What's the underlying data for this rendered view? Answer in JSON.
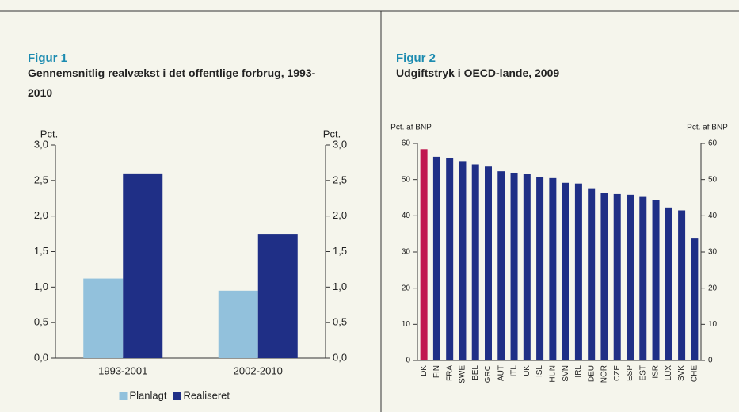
{
  "chart_data": [
    {
      "type": "bar",
      "label": "Figur 1",
      "title": "Gennemsnitlig realvækst i det offentlige forbrug, 1993-2010",
      "ylabel": "Pct.",
      "y2label": "Pct.",
      "categories": [
        "1993-2001",
        "2002-2010"
      ],
      "series": [
        {
          "name": "Planlagt",
          "color": "#92c1dc",
          "values": [
            1.12,
            0.95
          ]
        },
        {
          "name": "Realiseret",
          "color": "#1f2f86",
          "values": [
            2.6,
            1.75
          ]
        }
      ],
      "ylim": [
        0,
        3
      ],
      "yticks": [
        {
          "value": 0,
          "label": "0,0"
        },
        {
          "value": 0.5,
          "label": "0,5"
        },
        {
          "value": 1,
          "label": "1,0"
        },
        {
          "value": 1.5,
          "label": "1,5"
        },
        {
          "value": 2,
          "label": "2,0"
        },
        {
          "value": 2.5,
          "label": "2,5"
        },
        {
          "value": 3,
          "label": "3,0"
        }
      ],
      "y2lim": [
        0,
        3
      ],
      "y2ticks": [
        {
          "value": 0,
          "label": "0,0"
        },
        {
          "value": 0.5,
          "label": "0,5"
        },
        {
          "value": 1,
          "label": "1,0"
        },
        {
          "value": 1.5,
          "label": "1,5"
        },
        {
          "value": 2,
          "label": "2,0"
        },
        {
          "value": 2.5,
          "label": "2,5"
        },
        {
          "value": 3,
          "label": "3,0"
        }
      ],
      "legend": "bottom"
    },
    {
      "type": "bar",
      "label": "Figur 2",
      "title": "Udgiftstryk i OECD-lande, 2009",
      "ylabel": "Pct. af BNP",
      "y2label": "Pct. af BNP",
      "categories": [
        "DK",
        "FIN",
        "FRA",
        "SWE",
        "BEL",
        "GRC",
        "AUT",
        "ITL",
        "UK",
        "ISL",
        "HUN",
        "SVN",
        "IRL",
        "DEU",
        "NOR",
        "CZE",
        "ESP",
        "EST",
        "ISR",
        "LUX",
        "SVK",
        "CHE"
      ],
      "values": [
        58.4,
        56.3,
        56.0,
        55.1,
        54.2,
        53.6,
        52.3,
        51.9,
        51.6,
        50.8,
        50.4,
        49.1,
        48.9,
        47.6,
        46.4,
        46.0,
        45.8,
        45.2,
        44.3,
        42.3,
        41.5,
        33.7
      ],
      "colors": [
        "#c0174f",
        "#1f2f86",
        "#1f2f86",
        "#1f2f86",
        "#1f2f86",
        "#1f2f86",
        "#1f2f86",
        "#1f2f86",
        "#1f2f86",
        "#1f2f86",
        "#1f2f86",
        "#1f2f86",
        "#1f2f86",
        "#1f2f86",
        "#1f2f86",
        "#1f2f86",
        "#1f2f86",
        "#1f2f86",
        "#1f2f86",
        "#1f2f86",
        "#1f2f86",
        "#1f2f86"
      ],
      "ylim": [
        0,
        60
      ],
      "yticks": [
        0,
        10,
        20,
        30,
        40,
        50,
        60
      ],
      "y2lim": [
        0,
        60
      ],
      "y2ticks": [
        0,
        10,
        20,
        30,
        40,
        50,
        60
      ]
    }
  ]
}
